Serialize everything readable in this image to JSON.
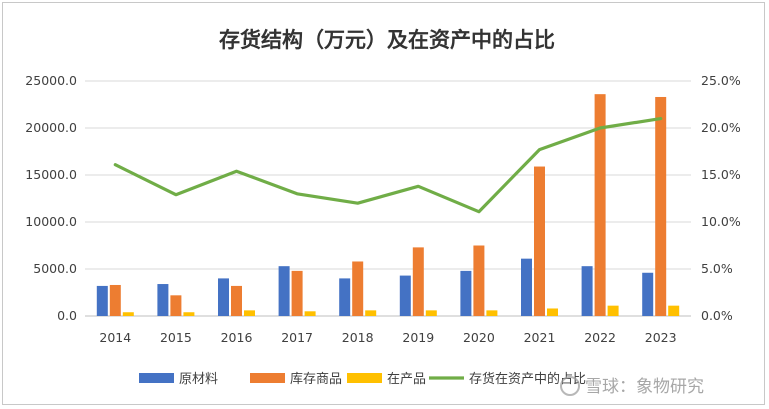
{
  "chart_data": {
    "type": "bar+line",
    "title": "存货结构（万元）及在资产中的占比",
    "categories": [
      "2014",
      "2015",
      "2016",
      "2017",
      "2018",
      "2019",
      "2020",
      "2021",
      "2022",
      "2023"
    ],
    "series": [
      {
        "name": "原材料",
        "type": "bar",
        "axis": "left",
        "color": "#4472c4",
        "values": [
          3200,
          3400,
          4000,
          5300,
          4000,
          4300,
          4800,
          6100,
          5300,
          4600
        ]
      },
      {
        "name": "库存商品",
        "type": "bar",
        "axis": "left",
        "color": "#ed7d31",
        "values": [
          3300,
          2200,
          3200,
          4800,
          5800,
          7300,
          7500,
          15900,
          23600,
          23300
        ]
      },
      {
        "name": "在产品",
        "type": "bar",
        "axis": "left",
        "color": "#ffc000",
        "values": [
          400,
          400,
          600,
          500,
          600,
          600,
          600,
          800,
          1100,
          1100
        ]
      },
      {
        "name": "存货在资产中的占比",
        "type": "line",
        "axis": "right",
        "color": "#70ad47",
        "values": [
          16.1,
          12.9,
          15.4,
          13.0,
          12.0,
          13.8,
          11.1,
          17.7,
          20.0,
          21.0
        ]
      }
    ],
    "y_left": {
      "min": 0,
      "max": 25000,
      "ticks": [
        "0.0",
        "5000.0",
        "10000.0",
        "15000.0",
        "20000.0",
        "25000.0"
      ]
    },
    "y_right": {
      "min": 0,
      "max": 25,
      "ticks": [
        "0.0%",
        "5.0%",
        "10.0%",
        "15.0%",
        "20.0%",
        "25.0%"
      ]
    },
    "grid": true,
    "legend_position": "bottom"
  },
  "watermark": {
    "text": "雪球：象物研究"
  }
}
